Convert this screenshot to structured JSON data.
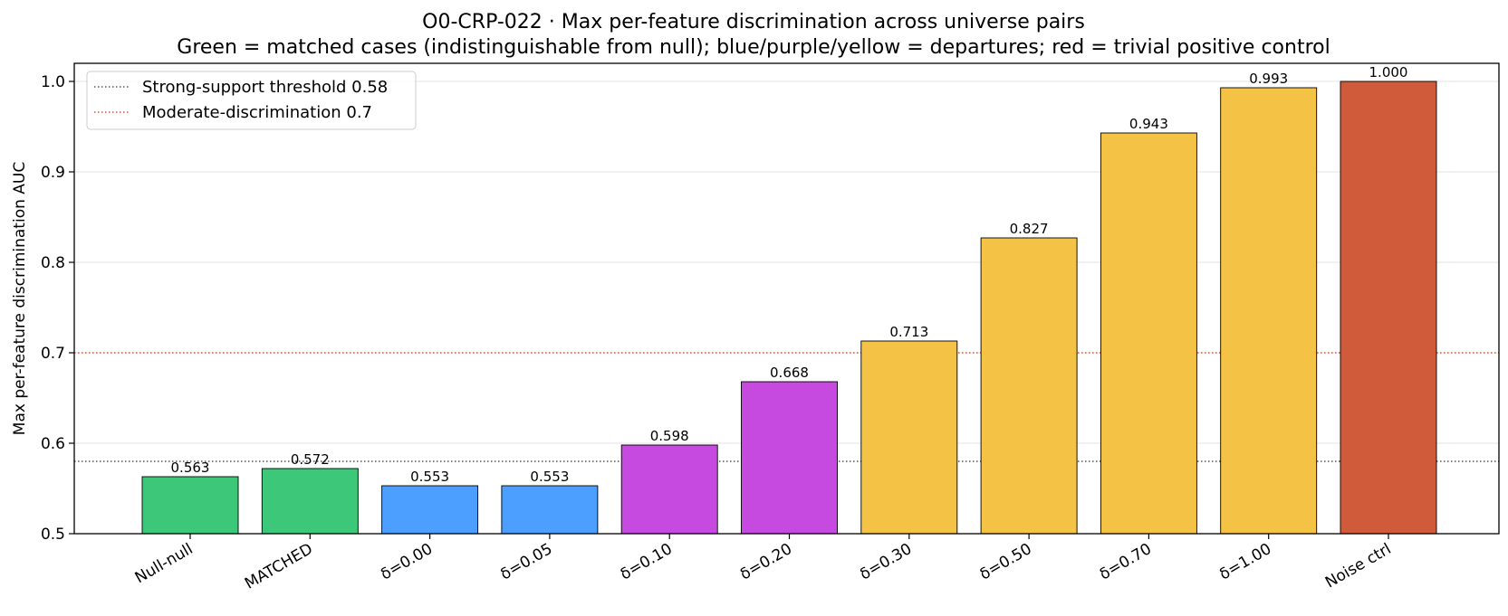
{
  "chart_data": {
    "type": "bar",
    "title": "O0-CRP-022 · Max per-feature discrimination across universe pairs",
    "subtitle": "Green = matched cases (indistinguishable from null); blue/purple/yellow = departures; red = trivial positive control",
    "xlabel": "",
    "ylabel": "Max per-feature discrimination AUC",
    "ylim": [
      0.5,
      1.02
    ],
    "yticks": [
      0.5,
      0.6,
      0.7,
      0.8,
      0.9,
      1.0
    ],
    "ytick_labels": [
      "0.5",
      "0.6",
      "0.7",
      "0.8",
      "0.9",
      "1.0"
    ],
    "grid": "horizontal",
    "legend_position": "top-left",
    "categories": [
      "Null-null",
      "MATCHED",
      "δ=0.00",
      "δ=0.05",
      "δ=0.10",
      "δ=0.20",
      "δ=0.30",
      "δ=0.50",
      "δ=0.70",
      "δ=1.00",
      "Noise ctrl"
    ],
    "values": [
      0.563,
      0.572,
      0.553,
      0.553,
      0.598,
      0.668,
      0.713,
      0.827,
      0.943,
      0.993,
      1.0
    ],
    "value_labels": [
      "0.563",
      "0.572",
      "0.553",
      "0.553",
      "0.598",
      "0.668",
      "0.713",
      "0.827",
      "0.943",
      "0.993",
      "1.000"
    ],
    "bar_colors": [
      "#3cc878",
      "#3cc878",
      "#4c9eff",
      "#4c9eff",
      "#c74ae0",
      "#c74ae0",
      "#f4c245",
      "#f4c245",
      "#f4c245",
      "#f4c245",
      "#d05b3a"
    ],
    "reference_lines": [
      {
        "label": "Strong-support threshold 0.58",
        "value": 0.58,
        "color": "#555555"
      },
      {
        "label": "Moderate-discrimination 0.7",
        "value": 0.7,
        "color": "#d05b3a"
      }
    ]
  }
}
